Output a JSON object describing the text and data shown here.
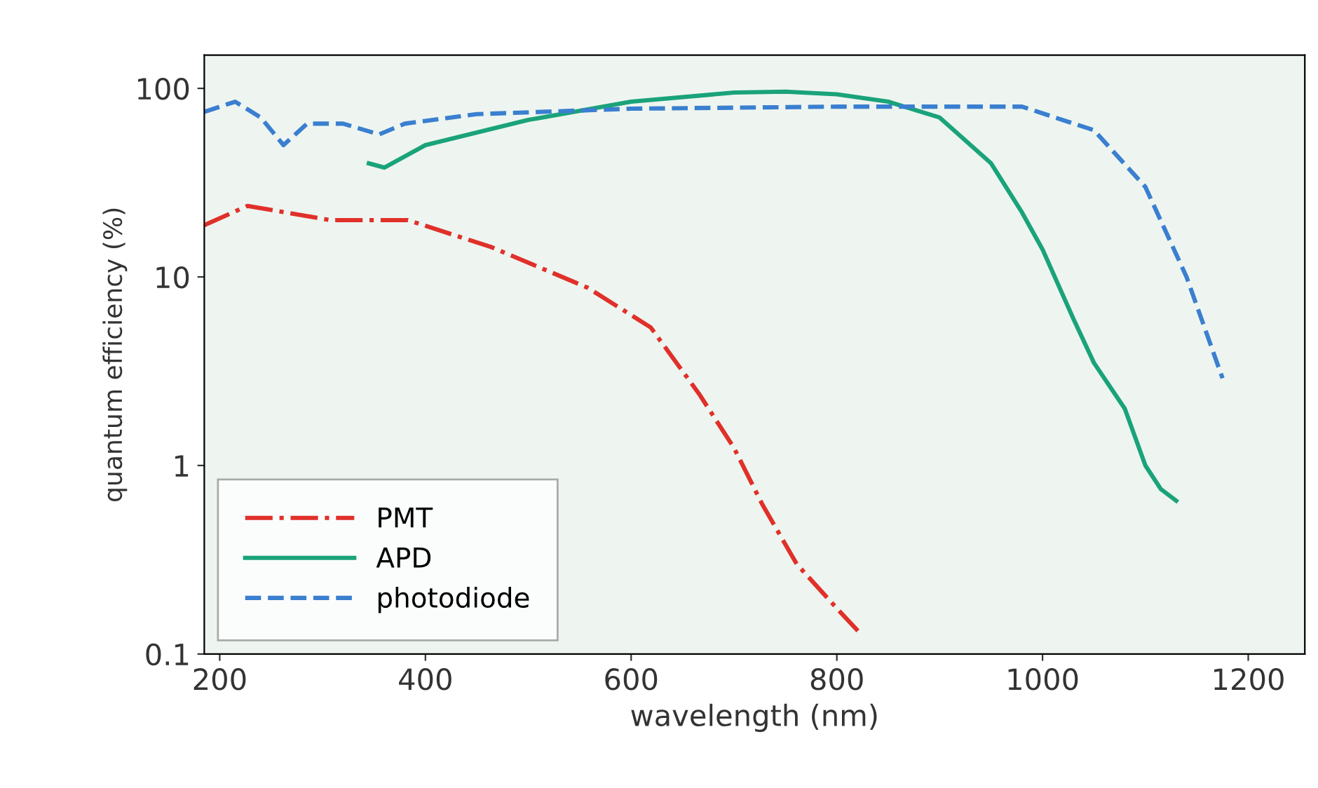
{
  "chart_data": {
    "type": "line",
    "xlabel": "wavelength (nm)",
    "ylabel": "quantum efficiency (%)",
    "log": "y",
    "xlim": [
      185,
      1255
    ],
    "ylim": [
      0.1,
      150
    ],
    "xticks": [
      200,
      400,
      600,
      800,
      1000,
      1200
    ],
    "yticks": [
      {
        "value": 0.1,
        "label": "0.1"
      },
      1,
      10,
      100
    ],
    "legend": "bottom left",
    "marker": "none",
    "series": [
      {
        "name": "PMT",
        "color": "#e0302a",
        "line_style": "dashdot",
        "x": [
          185,
          227,
          308,
          383,
          464,
          558,
          619,
          666,
          700,
          727,
          761,
          802,
          822
        ],
        "values": [
          18.8,
          23.8,
          20,
          20,
          14.4,
          8.75,
          5.4,
          2.4,
          1.24,
          0.63,
          0.3,
          0.17,
          0.13
        ]
      },
      {
        "name": "APD",
        "color": "#1aa37a",
        "line_style": "solid",
        "x": [
          345,
          360,
          400,
          500,
          600,
          700,
          750,
          800,
          850,
          900,
          950,
          980,
          1000,
          1030,
          1050,
          1080,
          1100,
          1115,
          1130
        ],
        "values": [
          40,
          38,
          50,
          68,
          85,
          95,
          96,
          93,
          85,
          70,
          40,
          22,
          14,
          6,
          3.5,
          2.0,
          1.0,
          0.75,
          0.65
        ]
      },
      {
        "name": "photodiode",
        "color": "#3a7fd0",
        "line_style": "dashed",
        "x": [
          185,
          215,
          240,
          262,
          285,
          320,
          355,
          380,
          450,
          600,
          800,
          980,
          1050,
          1100,
          1140,
          1175
        ],
        "values": [
          75,
          85,
          70,
          50,
          65,
          65,
          57,
          65,
          73,
          78,
          80,
          80,
          60,
          30,
          10,
          2.9
        ]
      }
    ]
  }
}
